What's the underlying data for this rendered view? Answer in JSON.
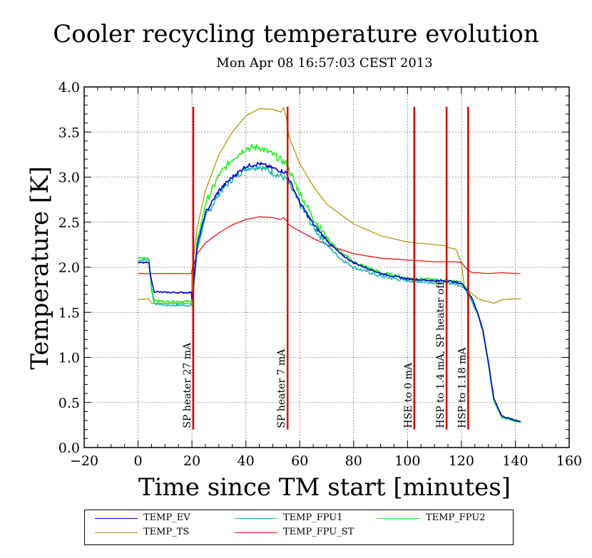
{
  "title": "Cooler recycling temperature evolution",
  "subtitle": "Mon Apr 08 16:57:03 CEST 2013",
  "colors": {
    "TEMP_EV": "#0000cc",
    "TEMP_FPU1": "#20b8b0",
    "TEMP_FPU2": "#22ee22",
    "TEMP_TS": "#b8960a",
    "TEMP_FPU_ST": "#ee1111",
    "event_line": "#dd0000"
  },
  "chart_data": {
    "type": "line",
    "title": "Cooler recycling temperature evolution",
    "subtitle": "Mon Apr 08 16:57:03 CEST 2013",
    "xlabel": "Time since TM start [minutes]",
    "ylabel": "Temperature [K]",
    "xlim": [
      -20,
      160
    ],
    "ylim": [
      0.0,
      4.0
    ],
    "xticks": [
      -20,
      0,
      20,
      40,
      60,
      80,
      100,
      120,
      140,
      160
    ],
    "xtick_labels": [
      "−20",
      "0",
      "20",
      "40",
      "60",
      "80",
      "100",
      "120",
      "140",
      "160"
    ],
    "yticks": [
      0.0,
      0.5,
      1.0,
      1.5,
      2.0,
      2.5,
      3.0,
      3.5,
      4.0
    ],
    "ytick_labels": [
      "0.0",
      "0.5",
      "1.0",
      "1.5",
      "2.0",
      "2.5",
      "3.0",
      "3.5",
      "4.0"
    ],
    "grid": true,
    "series": [
      {
        "name": "TEMP_EV",
        "color": "#0000cc",
        "x": [
          0,
          4,
          5,
          6,
          10,
          19.8,
          20,
          22,
          25,
          30,
          35,
          40,
          45,
          50,
          55,
          60,
          65,
          70,
          75,
          80,
          90,
          100,
          110,
          115,
          120,
          122,
          124,
          126,
          128,
          130,
          132,
          135,
          140,
          142
        ],
        "y": [
          2.05,
          2.05,
          1.85,
          1.73,
          1.72,
          1.72,
          1.65,
          2.25,
          2.6,
          2.85,
          3.0,
          3.12,
          3.15,
          3.1,
          3.05,
          2.72,
          2.48,
          2.3,
          2.15,
          2.05,
          1.93,
          1.87,
          1.85,
          1.85,
          1.82,
          1.75,
          1.65,
          1.5,
          1.3,
          0.95,
          0.55,
          0.35,
          0.3,
          0.29
        ]
      },
      {
        "name": "TEMP_TS",
        "color": "#b8960a",
        "x": [
          0,
          4,
          5,
          19.8,
          20,
          22,
          25,
          30,
          35,
          40,
          45,
          50,
          53,
          54,
          55,
          56,
          58,
          60,
          65,
          70,
          80,
          90,
          100,
          110,
          114,
          115,
          118,
          120,
          121,
          123,
          125,
          127,
          130,
          132,
          135,
          140,
          142
        ],
        "y": [
          1.64,
          1.65,
          1.6,
          1.6,
          1.95,
          2.45,
          2.85,
          3.25,
          3.5,
          3.68,
          3.76,
          3.75,
          3.72,
          3.77,
          3.67,
          3.45,
          3.3,
          3.15,
          2.9,
          2.7,
          2.48,
          2.35,
          2.28,
          2.25,
          2.24,
          2.22,
          2.2,
          2.05,
          1.8,
          1.73,
          1.68,
          1.64,
          1.62,
          1.6,
          1.64,
          1.65,
          1.65
        ]
      },
      {
        "name": "TEMP_FPU1",
        "color": "#20b8b0",
        "x": [
          0,
          4,
          5,
          6,
          10,
          19.8,
          20,
          22,
          25,
          30,
          35,
          40,
          45,
          50,
          55,
          60,
          65,
          70,
          75,
          80,
          90,
          100,
          110,
          115,
          120,
          122,
          124,
          126,
          128,
          130,
          132,
          135,
          140,
          142
        ],
        "y": [
          2.08,
          2.08,
          1.75,
          1.6,
          1.58,
          1.58,
          1.55,
          2.2,
          2.55,
          2.82,
          2.98,
          3.1,
          3.12,
          3.05,
          2.98,
          2.7,
          2.45,
          2.25,
          2.1,
          2.0,
          1.9,
          1.85,
          1.83,
          1.83,
          1.8,
          1.73,
          1.62,
          1.48,
          1.28,
          0.92,
          0.52,
          0.34,
          0.3,
          0.29
        ]
      },
      {
        "name": "TEMP_FPU2",
        "color": "#22ee22",
        "x": [
          0,
          4,
          5,
          6,
          10,
          19.8,
          20,
          22,
          25,
          30,
          35,
          40,
          45,
          50,
          55,
          60,
          65,
          70,
          75,
          80,
          90,
          100,
          110,
          115,
          120,
          122,
          124,
          126,
          128,
          130,
          132,
          135,
          140,
          142
        ],
        "y": [
          2.1,
          2.1,
          1.78,
          1.63,
          1.62,
          1.62,
          1.58,
          2.3,
          2.7,
          3.02,
          3.2,
          3.32,
          3.33,
          3.25,
          3.15,
          2.82,
          2.55,
          2.33,
          2.17,
          2.06,
          1.94,
          1.88,
          1.86,
          1.86,
          1.83,
          1.76,
          1.64,
          1.5,
          1.3,
          0.93,
          0.52,
          0.34,
          0.3,
          0.29
        ]
      },
      {
        "name": "TEMP_FPU_ST",
        "color": "#ee1111",
        "x": [
          0,
          10,
          19.8,
          20,
          22,
          25,
          30,
          35,
          40,
          45,
          50,
          53,
          54,
          55,
          56,
          60,
          65,
          70,
          80,
          90,
          100,
          110,
          115,
          118,
          120,
          122,
          124,
          126,
          130,
          135,
          140,
          142
        ],
        "y": [
          1.93,
          1.93,
          1.93,
          1.97,
          2.15,
          2.27,
          2.38,
          2.47,
          2.53,
          2.56,
          2.55,
          2.53,
          2.55,
          2.52,
          2.47,
          2.4,
          2.32,
          2.25,
          2.15,
          2.1,
          2.08,
          2.06,
          2.06,
          2.06,
          2.05,
          1.98,
          1.94,
          1.94,
          1.93,
          1.94,
          1.93,
          1.93
        ]
      }
    ],
    "events": [
      {
        "x": 20.5,
        "label": "SP heater 27 mA"
      },
      {
        "x": 55.5,
        "label": "SP heater 7 mA"
      },
      {
        "x": 102.5,
        "label": "HSE to 0 mA"
      },
      {
        "x": 114.5,
        "label": "HSP to 1.4 mA, SP heater off"
      },
      {
        "x": 122.5,
        "label": "HSP to 1.18 mA"
      }
    ],
    "event_range": [
      0.2,
      3.78
    ],
    "legend": {
      "placement": "bottom",
      "entries": [
        "TEMP_EV",
        "TEMP_FPU1",
        "TEMP_FPU2",
        "TEMP_TS",
        "TEMP_FPU_ST"
      ]
    }
  }
}
